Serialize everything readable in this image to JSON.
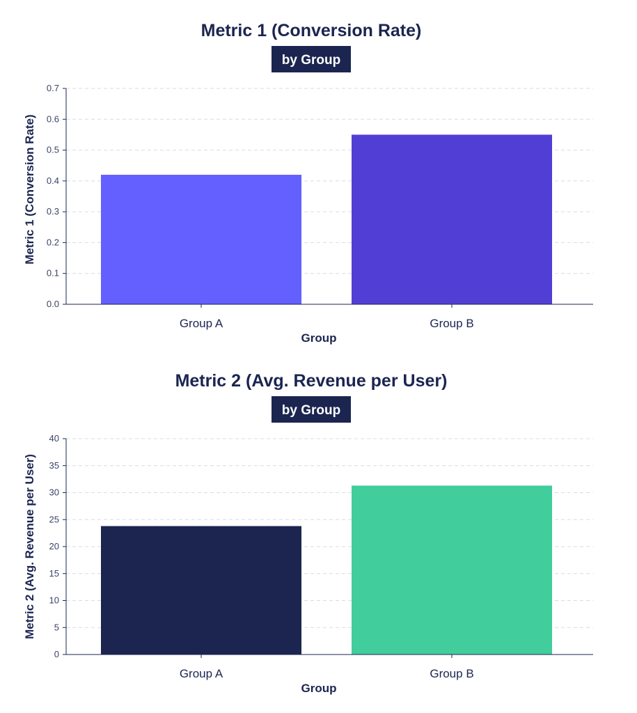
{
  "chart_data": [
    {
      "type": "bar",
      "title": "Metric 1 (Conversion Rate)",
      "subtitle": "by Group",
      "xlabel": "Group",
      "ylabel": "Metric 1 (Conversion Rate)",
      "categories": [
        "Group A",
        "Group B"
      ],
      "values": [
        0.42,
        0.55
      ],
      "colors": [
        "#6360ff",
        "#513ed4"
      ],
      "ylim": [
        0,
        0.7
      ],
      "yticks": [
        0.0,
        0.1,
        0.2,
        0.3,
        0.4,
        0.5,
        0.6,
        0.7
      ],
      "ytick_labels": [
        "0.0",
        "0.1",
        "0.2",
        "0.3",
        "0.4",
        "0.5",
        "0.6",
        "0.7"
      ],
      "grid": true
    },
    {
      "type": "bar",
      "title": "Metric 2 (Avg. Revenue per User)",
      "subtitle": "by Group",
      "xlabel": "Group",
      "ylabel": "Metric 2 (Avg. Revenue per User)",
      "categories": [
        "Group A",
        "Group B"
      ],
      "values": [
        23.8,
        31.3
      ],
      "colors": [
        "#1b2550",
        "#41cd9c"
      ],
      "ylim": [
        0,
        40
      ],
      "yticks": [
        0,
        5,
        10,
        15,
        20,
        25,
        30,
        35,
        40
      ],
      "ytick_labels": [
        "0",
        "5",
        "10",
        "15",
        "20",
        "25",
        "30",
        "35",
        "40"
      ],
      "grid": true
    }
  ]
}
